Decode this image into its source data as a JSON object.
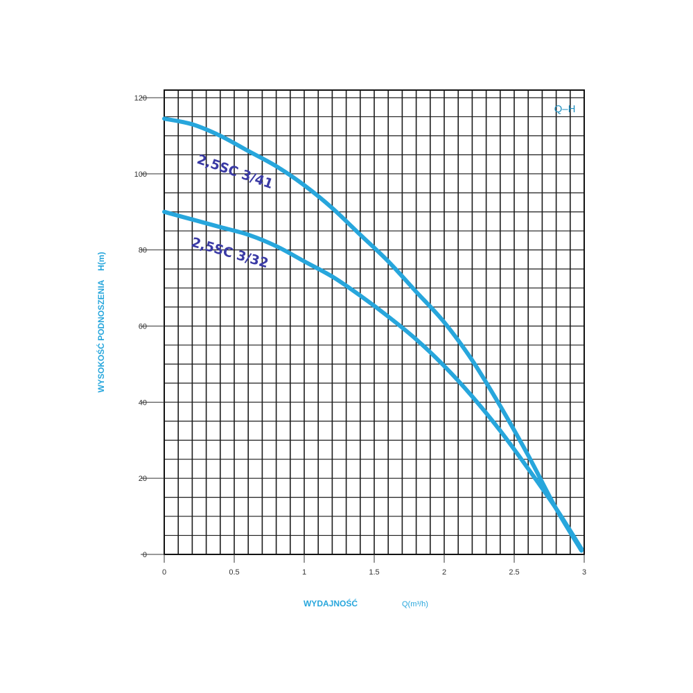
{
  "chart_data": {
    "type": "line",
    "corner_label": "Q–H",
    "xlabel": "WYDAJNOŚĆ",
    "xunit": "Q(m³/h)",
    "ylabel": "WYSOKOŚĆ PODNOSZENIA",
    "yunit": "H(m)",
    "xlim": [
      0,
      3
    ],
    "ylim": [
      0,
      122
    ],
    "x_ticks": [
      0,
      0.5,
      1,
      1.5,
      2,
      2.5,
      3
    ],
    "x_tick_labels": [
      "0",
      "0.5",
      "1",
      "1.5",
      "2",
      "2.5",
      "3"
    ],
    "y_ticks": [
      0,
      20,
      40,
      60,
      80,
      100,
      120
    ],
    "y_tick_labels": [
      "0",
      "20",
      "40",
      "60",
      "80",
      "100",
      "120"
    ],
    "grid": true,
    "series": [
      {
        "name": "2,5SC 3/41",
        "color": "#27a6dc",
        "x": [
          0,
          0.2,
          0.4,
          0.6,
          0.8,
          1.0,
          1.2,
          1.4,
          1.6,
          1.8,
          2.0,
          2.2,
          2.4,
          2.6,
          2.8,
          2.98
        ],
        "y": [
          114.5,
          113,
          110,
          106,
          102,
          97,
          91,
          84,
          77,
          69,
          61,
          51,
          39,
          26,
          12,
          1
        ]
      },
      {
        "name": "2,5SC 3/32",
        "color": "#27a6dc",
        "x": [
          0,
          0.2,
          0.4,
          0.6,
          0.8,
          1.0,
          1.2,
          1.4,
          1.6,
          1.8,
          2.0,
          2.2,
          2.4,
          2.6,
          2.8,
          2.98
        ],
        "y": [
          90,
          88,
          86,
          84,
          81,
          77,
          73,
          68,
          62.5,
          56.5,
          49.5,
          41.5,
          32.5,
          22.5,
          12,
          1.5
        ]
      }
    ],
    "label_color": "#3a3aa5",
    "accent_color": "#27a6dc"
  }
}
